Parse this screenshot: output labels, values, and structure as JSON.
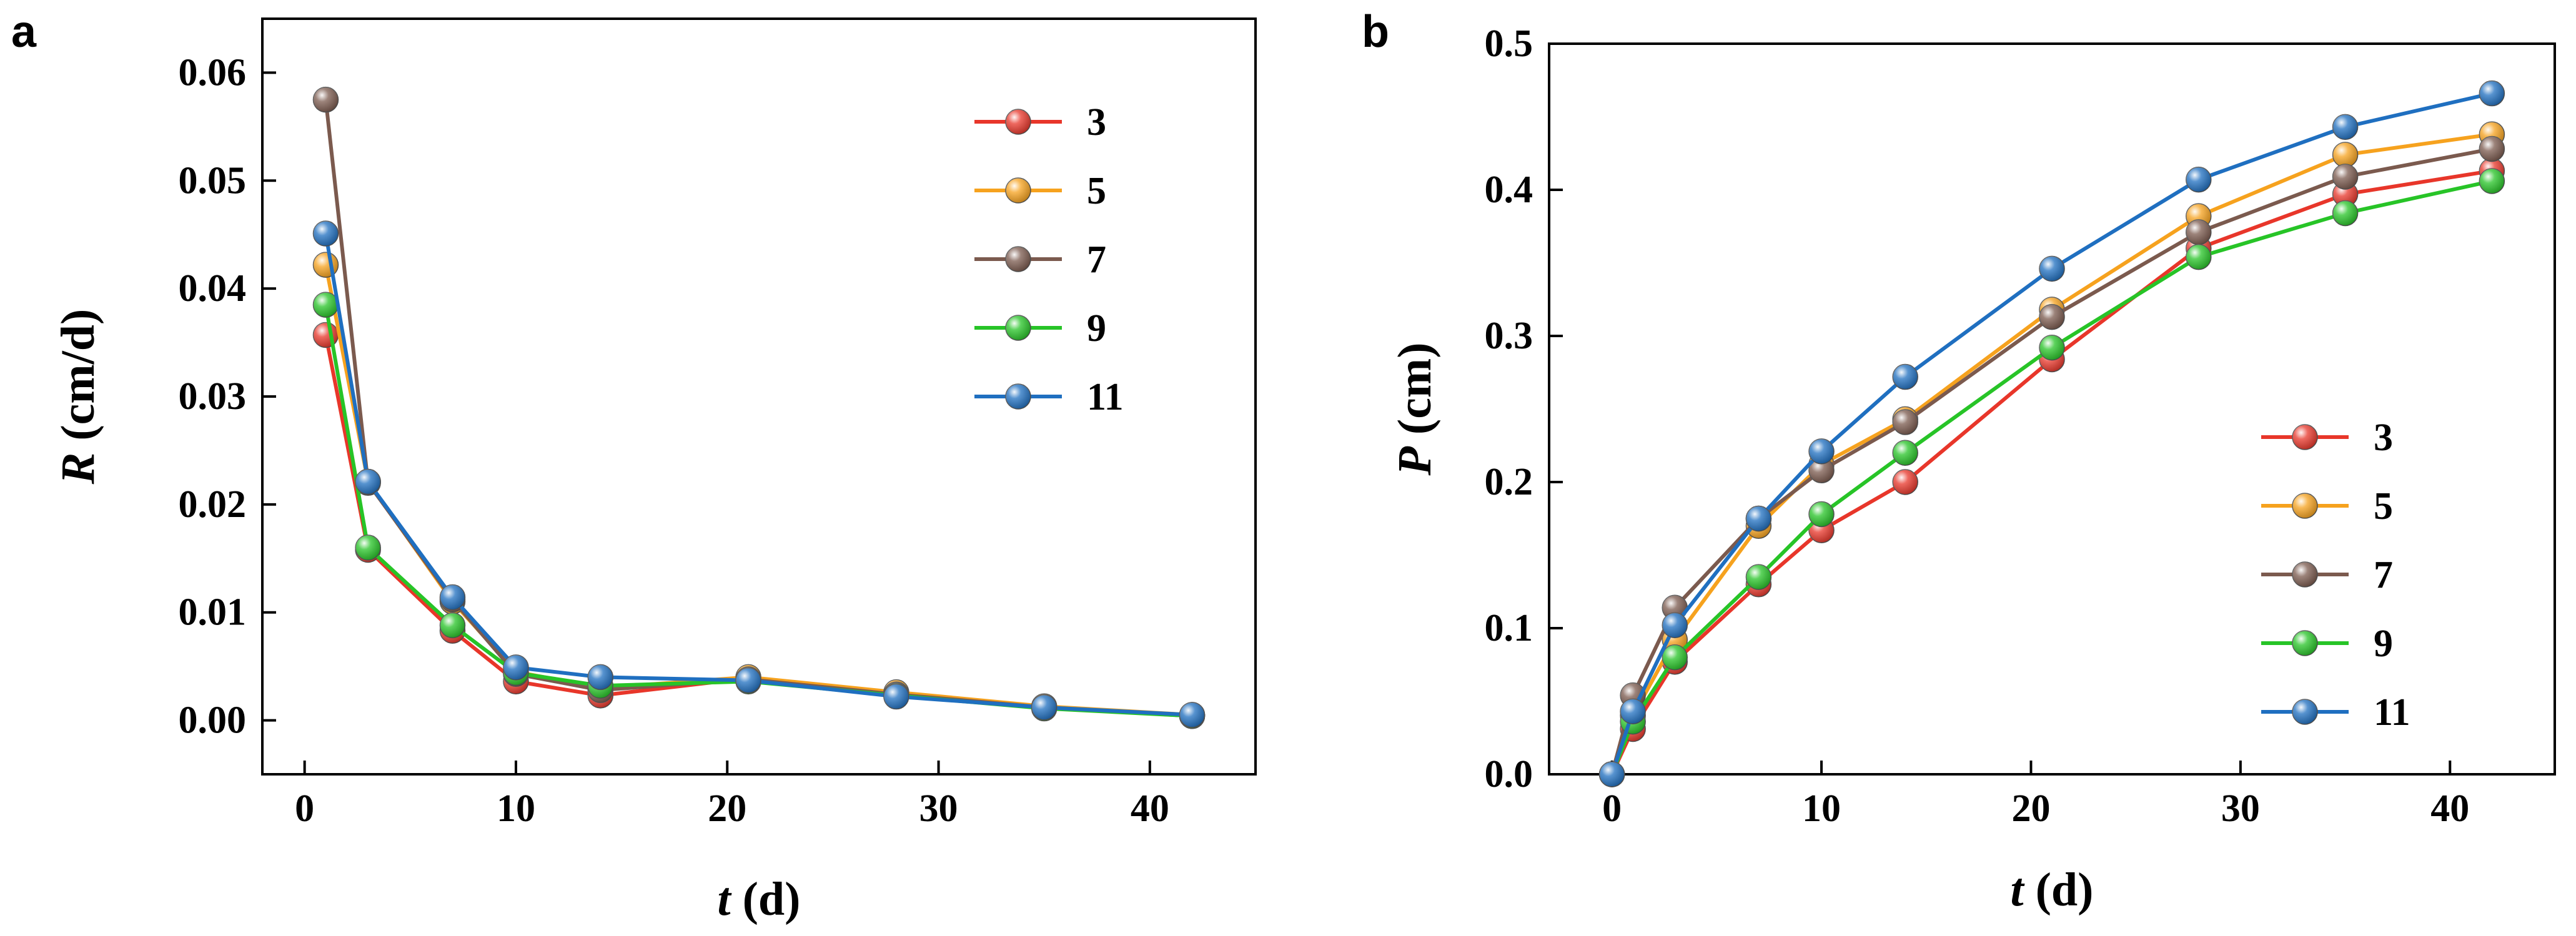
{
  "panels": [
    {
      "label": "a",
      "chart_data": {
        "type": "line",
        "title": "",
        "xlabel_var": "t",
        "xlabel_unit": " (d)",
        "ylabel_var": "R",
        "ylabel_unit": " (cm/d)",
        "xlim": [
          -2,
          45
        ],
        "ylim": [
          -0.005,
          0.065
        ],
        "xticks": [
          0,
          10,
          20,
          30,
          40
        ],
        "xtick_labels": [
          "0",
          "10",
          "20",
          "30",
          "40"
        ],
        "yticks": [
          0,
          0.01,
          0.02,
          0.03,
          0.04,
          0.05,
          0.06
        ],
        "ytick_labels": [
          "0.00",
          "0.01",
          "0.02",
          "0.03",
          "0.04",
          "0.05",
          "0.06"
        ],
        "x": [
          1,
          3,
          7,
          10,
          14,
          21,
          28,
          35,
          42
        ],
        "series": [
          {
            "name": "3",
            "values": [
              0.0357,
              0.0158,
              0.0083,
              0.0036,
              0.0023,
              0.0039,
              0.0025,
              0.0012,
              0.0004
            ]
          },
          {
            "name": "5",
            "values": [
              0.0422,
              0.0221,
              0.011,
              0.0045,
              0.003,
              0.004,
              0.0026,
              0.0013,
              0.0005
            ]
          },
          {
            "name": "7",
            "values": [
              0.0575,
              0.022,
              0.0112,
              0.0043,
              0.0028,
              0.0038,
              0.0024,
              0.0012,
              0.0004
            ]
          },
          {
            "name": "9",
            "values": [
              0.0385,
              0.016,
              0.0088,
              0.0044,
              0.0032,
              0.0036,
              0.0023,
              0.0011,
              0.0004
            ]
          },
          {
            "name": "11",
            "values": [
              0.0451,
              0.0221,
              0.0114,
              0.0049,
              0.004,
              0.0037,
              0.0022,
              0.0012,
              0.0005
            ]
          }
        ],
        "legend": "top-right"
      }
    },
    {
      "label": "b",
      "chart_data": {
        "type": "line",
        "title": "",
        "xlabel_var": "t",
        "xlabel_unit": " (d)",
        "ylabel_var": "P",
        "ylabel_unit": " (cm)",
        "xlim": [
          -3,
          45
        ],
        "ylim": [
          0,
          0.5
        ],
        "xticks": [
          0,
          10,
          20,
          30,
          40
        ],
        "xtick_labels": [
          "0",
          "10",
          "20",
          "30",
          "40"
        ],
        "yticks": [
          0,
          0.1,
          0.2,
          0.3,
          0.4,
          0.5
        ],
        "ytick_labels": [
          "0.0",
          "0.1",
          "0.2",
          "0.3",
          "0.4",
          "0.5"
        ],
        "x": [
          0,
          1,
          3,
          7,
          10,
          14,
          21,
          28,
          35,
          42
        ],
        "series": [
          {
            "name": "3",
            "values": [
              0,
              0.031,
              0.077,
              0.13,
              0.167,
              0.2,
              0.284,
              0.36,
              0.397,
              0.413
            ]
          },
          {
            "name": "5",
            "values": [
              0,
              0.04,
              0.092,
              0.17,
              0.212,
              0.243,
              0.318,
              0.382,
              0.424,
              0.438
            ]
          },
          {
            "name": "7",
            "values": [
              0,
              0.054,
              0.114,
              0.175,
              0.208,
              0.241,
              0.313,
              0.371,
              0.409,
              0.428
            ]
          },
          {
            "name": "9",
            "values": [
              0,
              0.036,
              0.08,
              0.135,
              0.178,
              0.22,
              0.292,
              0.354,
              0.384,
              0.406
            ]
          },
          {
            "name": "11",
            "values": [
              0,
              0.043,
              0.102,
              0.175,
              0.221,
              0.272,
              0.346,
              0.407,
              0.443,
              0.466
            ]
          }
        ],
        "legend": "lower-right"
      }
    }
  ],
  "series_colors": {
    "3": "#e8362a",
    "5": "#f6a21e",
    "7": "#7b5a4e",
    "9": "#27c427",
    "11": "#1f6fc0"
  }
}
